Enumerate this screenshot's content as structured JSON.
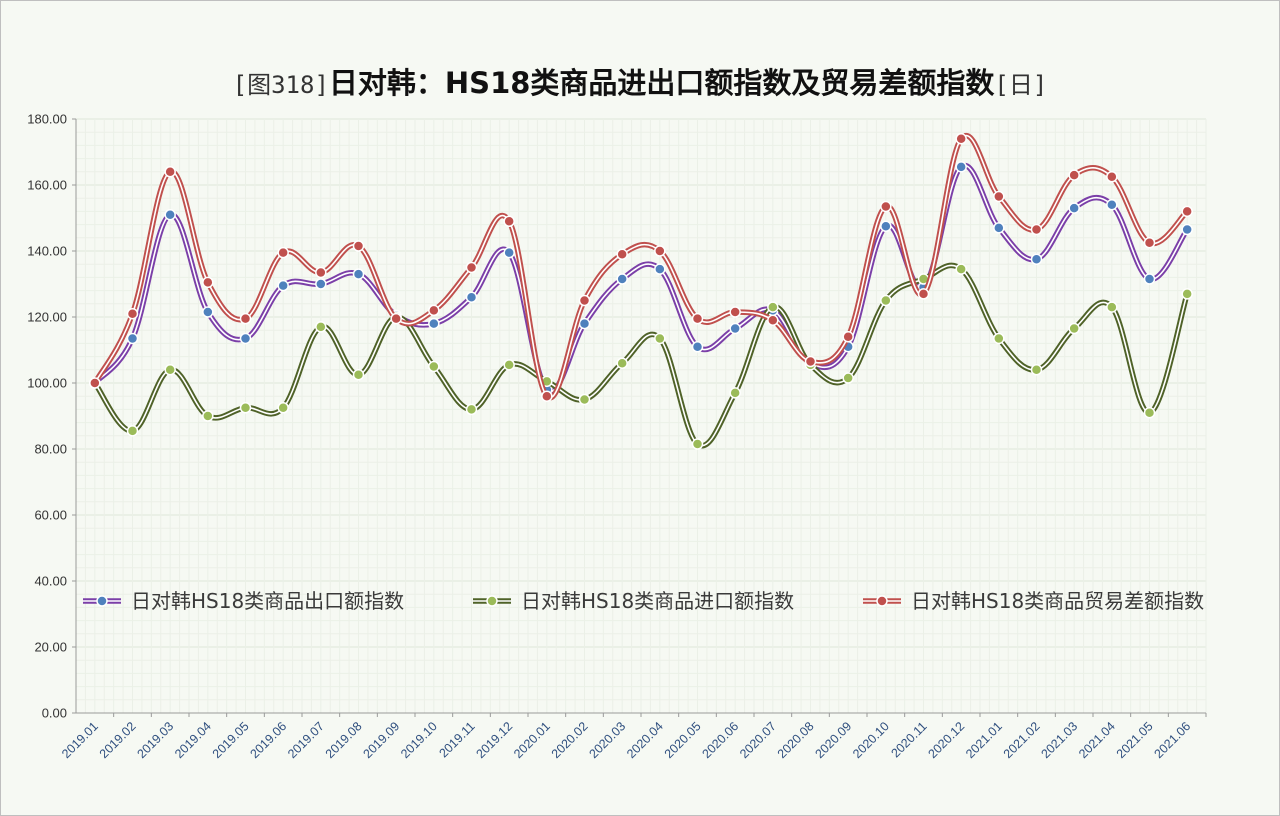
{
  "chart_data": {
    "type": "line",
    "title_prefix": "[图318]",
    "title_main": "日对韩：HS18类商品进出口额指数及贸易差额指数",
    "title_suffix": "[日]",
    "xlabel": "",
    "ylabel": "",
    "ylim": [
      0,
      180
    ],
    "yticks": [
      "0.00",
      "20.00",
      "40.00",
      "60.00",
      "80.00",
      "100.00",
      "120.00",
      "140.00",
      "160.00",
      "180.00"
    ],
    "grid": true,
    "legend_position": "inside-bottom",
    "categories": [
      "2019.01",
      "2019.02",
      "2019.03",
      "2019.04",
      "2019.05",
      "2019.06",
      "2019.07",
      "2019.08",
      "2019.09",
      "2019.10",
      "2019.11",
      "2019.12",
      "2020.01",
      "2020.02",
      "2020.03",
      "2020.04",
      "2020.05",
      "2020.06",
      "2020.07",
      "2020.08",
      "2020.09",
      "2020.10",
      "2020.11",
      "2020.12",
      "2021.01",
      "2021.02",
      "2021.03",
      "2021.04",
      "2021.05",
      "2021.06"
    ],
    "series": [
      {
        "name": "日对韩HS18类商品出口额指数",
        "line_color": "#7b3fa8",
        "marker_color": "#4f81bd",
        "values": [
          100.0,
          113.5,
          151.0,
          121.5,
          113.5,
          129.5,
          130.0,
          133.0,
          120.5,
          118.0,
          126.0,
          139.5,
          98.0,
          118.0,
          131.5,
          134.5,
          111.0,
          116.5,
          122.0,
          106.0,
          111.0,
          147.5,
          129.0,
          165.5,
          147.0,
          137.5,
          153.0,
          154.0,
          131.5,
          146.5
        ]
      },
      {
        "name": "日对韩HS18类商品进口额指数",
        "line_color": "#4f6228",
        "marker_color": "#9bbb59",
        "values": [
          100.0,
          85.5,
          104.0,
          90.0,
          92.5,
          92.5,
          117.0,
          102.5,
          120.0,
          105.0,
          92.0,
          105.5,
          100.5,
          95.0,
          106.0,
          113.5,
          81.5,
          97.0,
          123.0,
          105.5,
          101.5,
          125.0,
          131.5,
          134.5,
          113.5,
          104.0,
          116.5,
          123.0,
          91.0,
          127.0
        ]
      },
      {
        "name": "日对韩HS18类商品贸易差额指数",
        "line_color": "#c0504d",
        "marker_color": "#c0504d",
        "values": [
          100.0,
          121.0,
          164.0,
          130.5,
          119.5,
          139.5,
          133.5,
          141.5,
          119.5,
          122.0,
          135.0,
          149.0,
          96.0,
          125.0,
          139.0,
          140.0,
          119.5,
          121.5,
          119.0,
          106.5,
          114.0,
          153.5,
          127.0,
          174.0,
          156.5,
          146.5,
          163.0,
          162.5,
          142.5,
          152.0
        ]
      }
    ]
  }
}
